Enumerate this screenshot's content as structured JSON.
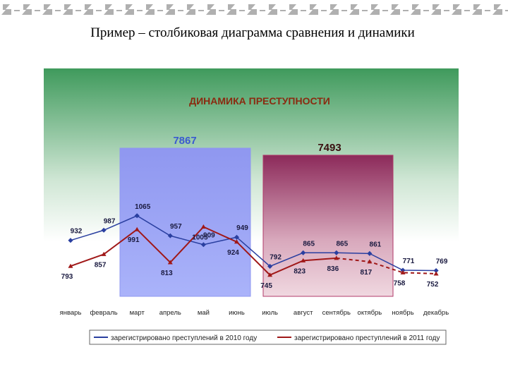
{
  "slide_title": "Пример – столбиковая диаграмма сравнения и динамики",
  "chart_data": {
    "type": "line",
    "title": "ДИНАМИКА ПРЕСТУПНОСТИ",
    "categories": [
      "январь",
      "февраль",
      "март",
      "апрель",
      "май",
      "июнь",
      "июль",
      "август",
      "сентябрь",
      "октябрь",
      "ноябрь",
      "декабрь"
    ],
    "series": [
      {
        "name": "зарегистрировано преступлений в 2010 году",
        "color": "#2a3fa0",
        "values": [
          932,
          987,
          1065,
          957,
          909,
          949,
          792,
          865,
          865,
          861,
          771,
          769
        ]
      },
      {
        "name": "зарегистрировано преступлений в 2011 году",
        "color": "#a01818",
        "dash_from": 8,
        "values": [
          793,
          857,
          991,
          813,
          1005,
          924,
          745,
          823,
          836,
          817,
          758,
          752
        ]
      }
    ],
    "totals": {
      "type": "bar",
      "axis": "y2",
      "values": [
        7867,
        7493
      ],
      "colors": [
        "#8f97f0",
        "#b03a6a"
      ],
      "label_colors": [
        "#3a5ad0",
        "#3a1010"
      ]
    },
    "ylim": [
      630,
      1860
    ],
    "y2lim": [
      0,
      12100
    ],
    "legend": "bottom"
  }
}
